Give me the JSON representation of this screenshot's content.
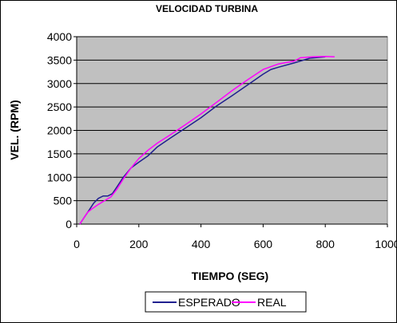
{
  "chart_data": {
    "type": "line",
    "title": "VELOCIDAD TURBINA",
    "xlabel": "TIEMPO (SEG)",
    "ylabel": "VEL. (RPM)",
    "xlim": [
      0,
      1000
    ],
    "ylim": [
      0,
      4000
    ],
    "x_ticks": [
      0,
      200,
      400,
      600,
      800,
      1000
    ],
    "y_ticks": [
      0,
      500,
      1000,
      1500,
      2000,
      2500,
      3000,
      3500,
      4000
    ],
    "x_tick_labels": [
      "0",
      "200",
      "400",
      "600",
      "800",
      "1000"
    ],
    "y_tick_labels": [
      "0",
      "500",
      "1000",
      "1500",
      "2000",
      "2500",
      "3000",
      "3500",
      "4000"
    ],
    "grid": "horizontal",
    "plot_background": "#c0c0c0",
    "legend_position": "bottom",
    "series": [
      {
        "name": "ESPERADO",
        "color": "#1f1f8f",
        "points": [
          [
            10,
            0
          ],
          [
            25,
            150
          ],
          [
            40,
            300
          ],
          [
            55,
            450
          ],
          [
            70,
            550
          ],
          [
            85,
            600
          ],
          [
            100,
            600
          ],
          [
            115,
            650
          ],
          [
            130,
            800
          ],
          [
            150,
            1000
          ],
          [
            175,
            1200
          ],
          [
            200,
            1320
          ],
          [
            230,
            1460
          ],
          [
            260,
            1650
          ],
          [
            300,
            1830
          ],
          [
            350,
            2050
          ],
          [
            400,
            2270
          ],
          [
            450,
            2520
          ],
          [
            500,
            2740
          ],
          [
            550,
            2970
          ],
          [
            600,
            3200
          ],
          [
            625,
            3300
          ],
          [
            650,
            3350
          ],
          [
            700,
            3440
          ],
          [
            750,
            3540
          ],
          [
            800,
            3570
          ]
        ]
      },
      {
        "name": "REAL",
        "color": "#ff00ff",
        "points": [
          [
            10,
            0
          ],
          [
            20,
            100
          ],
          [
            35,
            250
          ],
          [
            50,
            330
          ],
          [
            70,
            420
          ],
          [
            90,
            500
          ],
          [
            110,
            580
          ],
          [
            130,
            750
          ],
          [
            150,
            960
          ],
          [
            175,
            1200
          ],
          [
            200,
            1400
          ],
          [
            230,
            1580
          ],
          [
            260,
            1730
          ],
          [
            300,
            1900
          ],
          [
            350,
            2120
          ],
          [
            400,
            2350
          ],
          [
            450,
            2600
          ],
          [
            500,
            2850
          ],
          [
            550,
            3080
          ],
          [
            600,
            3300
          ],
          [
            650,
            3420
          ],
          [
            700,
            3480
          ],
          [
            720,
            3550
          ],
          [
            760,
            3570
          ],
          [
            800,
            3580
          ],
          [
            830,
            3570
          ]
        ]
      }
    ]
  }
}
